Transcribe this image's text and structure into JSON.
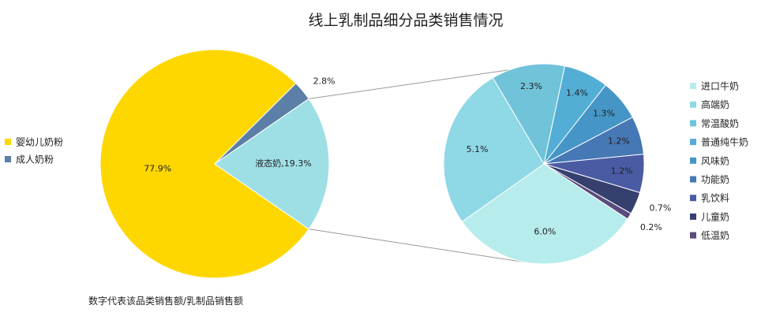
{
  "chart_data": [
    {
      "type": "pie",
      "title": "线上乳制品细分品类销售情况",
      "note": "数字代表该品类销售额/乳制品销售额",
      "slices": [
        {
          "name": "婴幼儿奶粉",
          "value": 77.9,
          "label": "77.9%",
          "color": "#FFD700"
        },
        {
          "name": "成人奶粉",
          "value": 2.8,
          "label": "2.8%",
          "color": "#5B7FA6"
        },
        {
          "name": "液态奶",
          "value": 19.3,
          "label": "液态奶,19.3%",
          "color": "#9EDFE6"
        }
      ],
      "legend": [
        "婴幼儿奶粉",
        "成人奶粉"
      ],
      "legend_position": "left"
    },
    {
      "type": "pie",
      "parent": "液态奶",
      "slices": [
        {
          "name": "进口牛奶",
          "value": 6.0,
          "label": "6.0%",
          "color": "#B7ECEC"
        },
        {
          "name": "高端奶",
          "value": 5.1,
          "label": "5.1%",
          "color": "#8FD8E6"
        },
        {
          "name": "常温酸奶",
          "value": 2.3,
          "label": "2.3%",
          "color": "#71C3D9"
        },
        {
          "name": "普通纯牛奶",
          "value": 1.4,
          "label": "1.4%",
          "color": "#53AED6"
        },
        {
          "name": "风味奶",
          "value": 1.3,
          "label": "1.3%",
          "color": "#4596C6"
        },
        {
          "name": "功能奶",
          "value": 1.2,
          "label": "1.2%",
          "color": "#4678B5"
        },
        {
          "name": "乳饮料",
          "value": 1.2,
          "label": "1.2%",
          "color": "#4A5BA4"
        },
        {
          "name": "儿童奶",
          "value": 0.7,
          "label": "0.7%",
          "color": "#36406E"
        },
        {
          "name": "低温奶",
          "value": 0.2,
          "label": "0.2%",
          "color": "#5A4A7D"
        }
      ],
      "legend": [
        "进口牛奶",
        "高端奶",
        "常温酸奶",
        "普通纯牛奶",
        "风味奶",
        "功能奶",
        "乳饮料",
        "儿童奶",
        "低温奶"
      ],
      "legend_position": "right"
    }
  ]
}
